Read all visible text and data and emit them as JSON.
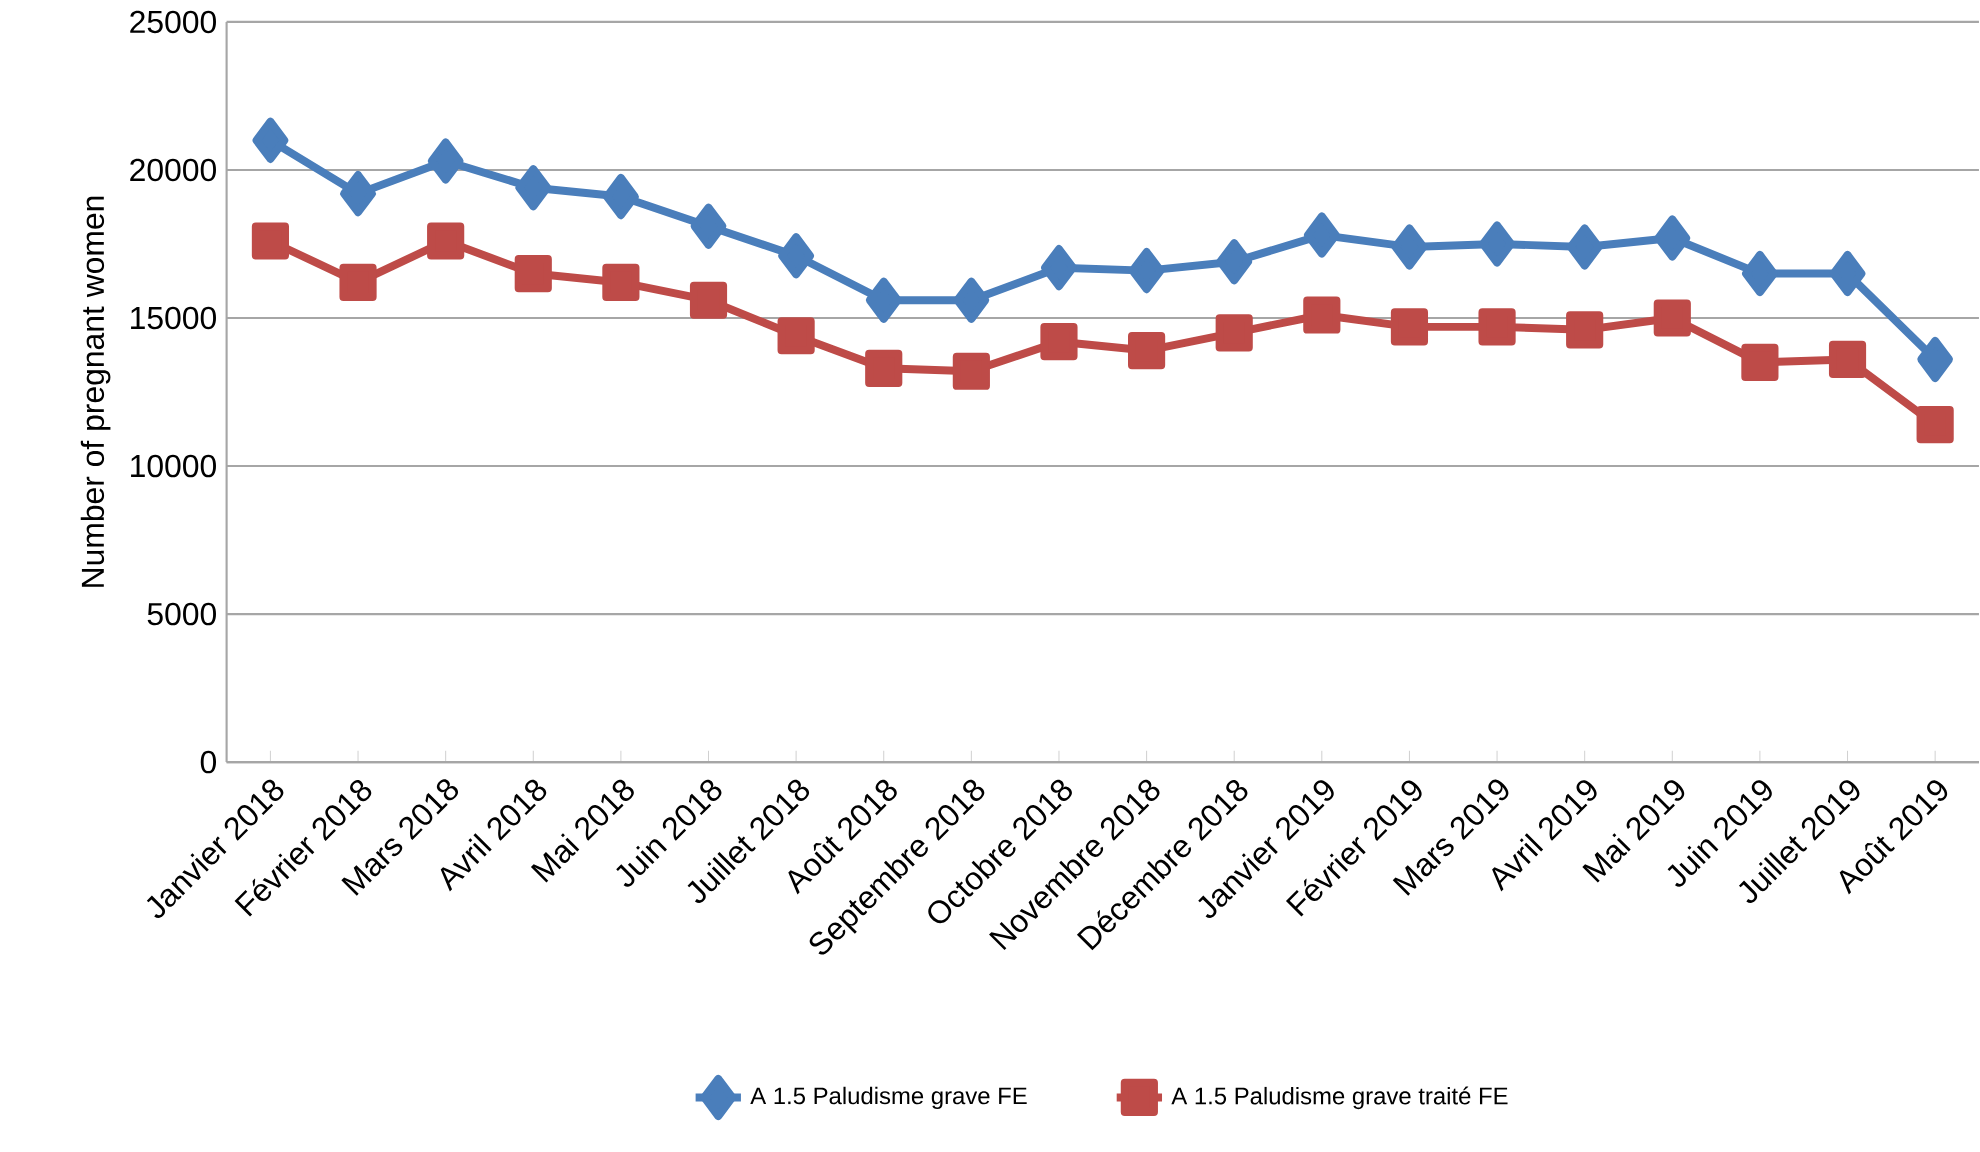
{
  "chart_data": {
    "type": "line",
    "ylabel": "Number of pregnant women",
    "categories": [
      "Janvier 2018",
      "Février 2018",
      "Mars 2018",
      "Avril 2018",
      "Mai 2018",
      "Juin 2018",
      "Juillet 2018",
      "Août 2018",
      "Septembre 2018",
      "Octobre 2018",
      "Novembre 2018",
      "Décembre 2018",
      "Janvier 2019",
      "Février 2019",
      "Mars 2019",
      "Avril 2019",
      "Mai 2019",
      "Juin 2019",
      "Juillet 2019",
      "Août 2019"
    ],
    "series": [
      {
        "name": "A 1.5 Paludisme grave FE",
        "color": "#4a7ebb",
        "marker": "diamond",
        "values": [
          21000,
          19200,
          20300,
          19400,
          19100,
          18100,
          17100,
          15600,
          15600,
          16700,
          16600,
          16900,
          17800,
          17400,
          17500,
          17400,
          17700,
          16500,
          16500,
          13600
        ]
      },
      {
        "name": "A 1.5 Paludisme grave traité FE",
        "color": "#be4b48",
        "marker": "square",
        "values": [
          17600,
          16200,
          17600,
          16500,
          16200,
          15600,
          14400,
          13300,
          13200,
          14200,
          13900,
          14500,
          15100,
          14700,
          14700,
          14600,
          15000,
          13500,
          13600,
          11400
        ]
      }
    ],
    "ylim": [
      0,
      25000
    ],
    "yticks": [
      0,
      5000,
      10000,
      15000,
      20000,
      25000
    ],
    "grid": "y",
    "legend": "bottom"
  }
}
